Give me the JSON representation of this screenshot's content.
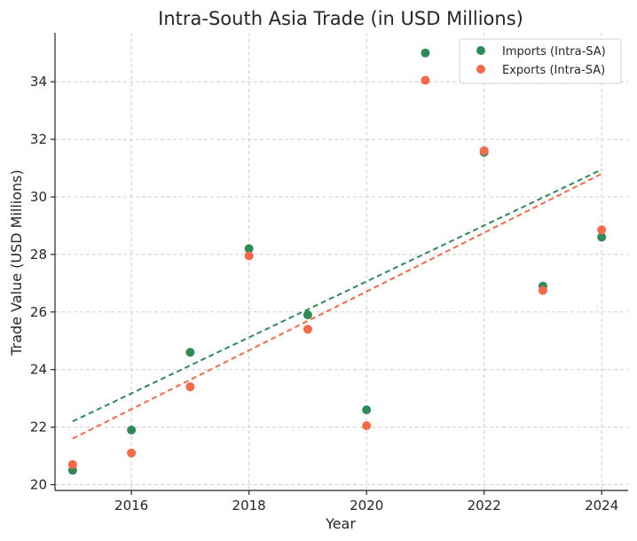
{
  "chart_data": {
    "type": "scatter",
    "title": "Intra-South Asia Trade (in USD Millions)",
    "xlabel": "Year",
    "ylabel": "Trade Value (USD Millions)",
    "xlim": [
      2014.7,
      2024.45
    ],
    "ylim": [
      19.8,
      35.7
    ],
    "xticks": [
      2016,
      2018,
      2020,
      2022,
      2024
    ],
    "yticks": [
      20,
      22,
      24,
      26,
      28,
      30,
      32,
      34
    ],
    "grid": true,
    "legend_position": "top-right",
    "series": [
      {
        "name": "Imports (Intra-SA)",
        "color": "#2e8b57",
        "x": [
          2015,
          2016,
          2017,
          2018,
          2019,
          2020,
          2021,
          2022,
          2023,
          2024
        ],
        "y": [
          20.5,
          21.9,
          24.6,
          28.2,
          25.9,
          22.6,
          35.0,
          31.55,
          26.9,
          28.6
        ],
        "trend": {
          "x": [
            2015,
            2024
          ],
          "y": [
            22.2,
            30.95
          ]
        }
      },
      {
        "name": "Exports (Intra-SA)",
        "color": "#f4694a",
        "x": [
          2015,
          2016,
          2017,
          2018,
          2019,
          2020,
          2021,
          2022,
          2023,
          2024
        ],
        "y": [
          20.7,
          21.1,
          23.4,
          27.95,
          25.4,
          22.05,
          34.05,
          31.6,
          26.75,
          28.85
        ],
        "trend": {
          "x": [
            2015,
            2024
          ],
          "y": [
            21.6,
            30.8
          ]
        }
      }
    ]
  }
}
